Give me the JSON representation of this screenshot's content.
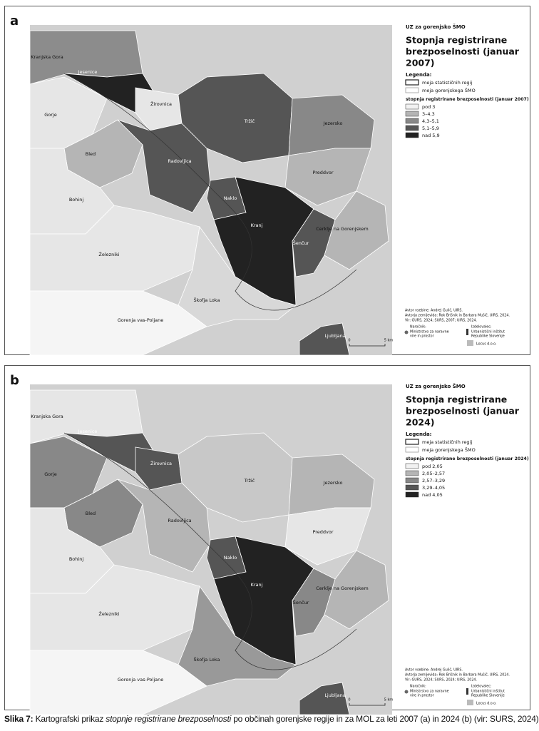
{
  "panels": [
    {
      "letter": "a",
      "region": "UZ za gorenjsko ŠMO",
      "title_lines": [
        "Stopnja registrirane",
        "brezposelnosti (januar",
        "2007)"
      ],
      "legend_title": "Legenda:",
      "boundary_items": [
        "meja statističnih regij",
        "meja gorenjskega ŠMO"
      ],
      "class_title": "stopnja registrirane brezposelnosti (januar 2007)",
      "classes": [
        "pod 3",
        "3–4,3",
        "4,3–5,1",
        "5,1–5,9",
        "nad 5,9"
      ],
      "credits": [
        "Avtor vsebine: Andrej Gulič, UIRS.",
        "Avtorja zemljevida: Rok Brišnik in Barbara Mušič, UIRS, 2024.",
        "Vir: GURS, 2024; SURS, 2007; UIRS, 2024."
      ],
      "commissioner_label": "Naročnik:",
      "commissioner": [
        "Ministrstvo za naravne",
        "vire in prostor"
      ],
      "maker_label": "Izdelovalec:",
      "maker": [
        "Urbanistični inštitut",
        "Republike Slovenije"
      ],
      "partner": "Locus d.o.o.",
      "scale": [
        "0",
        "5 km"
      ],
      "municipalities": [
        "Kranjska Gora",
        "Jesenice",
        "Gorje",
        "Žirovnica",
        "Bled",
        "Bohinj",
        "Radovljica",
        "Tržič",
        "Jezersko",
        "Preddvor",
        "Naklo",
        "Kranj",
        "Šenčur",
        "Cerklje na Gorenjskem",
        "Železniki",
        "Škofja Loka",
        "Gorenja vas-Poljane",
        "Ljubljana"
      ]
    },
    {
      "letter": "b",
      "region": "UZ za gorenjsko ŠMO",
      "title_lines": [
        "Stopnja registrirane",
        "brezposelnosti (januar",
        "2024)"
      ],
      "legend_title": "Legenda:",
      "boundary_items": [
        "meja statističnih regij",
        "meja gorenjskega ŠMO"
      ],
      "class_title": "stopnja registrirane brezposelnosti (januar 2024)",
      "classes": [
        "pod 2,05",
        "2,05–2,57",
        "2,57–3,29",
        "3,29–4,05",
        "nad 4,05"
      ],
      "credits": [
        "Avtor vsebine: Andrej Gulič, UIRS.",
        "Avtorja zemljevida: Rok Brišnik in Barbara Mušič, UIRS, 2024.",
        "Vir: GURS, 2024; SURS, 2024; UIRS, 2024."
      ],
      "commissioner_label": "Naročnik:",
      "commissioner": [
        "Ministrstvo za naravne",
        "vire in prostor"
      ],
      "maker_label": "Izdelovalec:",
      "maker": [
        "Urbanistični inštitut",
        "Republike Slovenije"
      ],
      "partner": "Locus d.o.o.",
      "scale": [
        "0",
        "5 km"
      ],
      "municipalities": [
        "Kranjska Gora",
        "Jesenice",
        "Gorje",
        "Žirovnica",
        "Bled",
        "Bohinj",
        "Radovljica",
        "Tržič",
        "Jezersko",
        "Preddvor",
        "Naklo",
        "Kranj",
        "Šenčur",
        "Cerklje na Gorenjskem",
        "Železniki",
        "Škofja Loka",
        "Gorenja vas-Poljane",
        "Ljubljana"
      ]
    }
  ],
  "caption": {
    "label": "Slika 7:",
    "before": " Kartografski prikaz ",
    "italic": "stopnje registrirane brezposelnosti",
    "after": " po občinah gorenjske regije in za MOL za leti 2007 (a) in 2024 (b) (vir: SURS, 2024)"
  }
}
